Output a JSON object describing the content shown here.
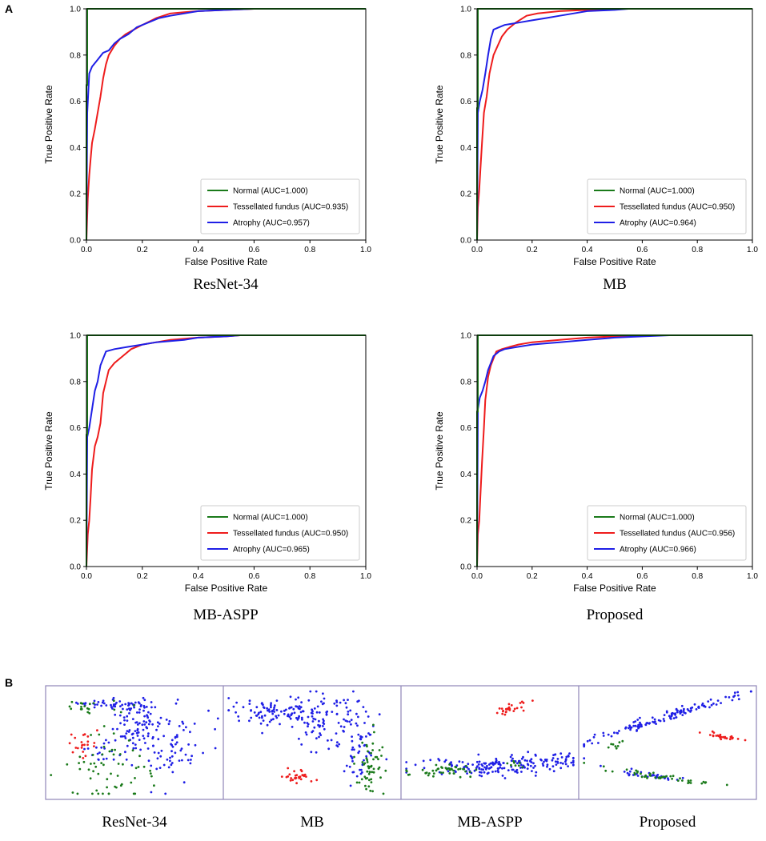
{
  "panel_labels": [
    "A",
    "B"
  ],
  "chart_data": [
    {
      "type": "line",
      "caption": "ResNet-34",
      "xlabel": "False Positive Rate",
      "ylabel": "True Positive Rate",
      "xlim": [
        0,
        1
      ],
      "ylim": [
        0,
        1
      ],
      "xticks": [
        "0.0",
        "0.2",
        "0.4",
        "0.6",
        "0.8",
        "1.0"
      ],
      "yticks": [
        "0.0",
        "0.2",
        "0.4",
        "0.6",
        "0.8",
        "1.0"
      ],
      "legend_position": "lower-right",
      "series": [
        {
          "name": "Normal (AUC=1.000)",
          "color": "#1a7a1a",
          "x": [
            0,
            0,
            0,
            0.003,
            0.003,
            1.0
          ],
          "y": [
            0,
            0.55,
            0.67,
            0.67,
            1.0,
            1.0
          ]
        },
        {
          "name": "Tessellated fundus (AUC=0.935)",
          "color": "#ee1c1c",
          "x": [
            0,
            0.005,
            0.01,
            0.015,
            0.02,
            0.03,
            0.04,
            0.05,
            0.06,
            0.07,
            0.08,
            0.1,
            0.12,
            0.14,
            0.17,
            0.2,
            0.25,
            0.3,
            0.35,
            0.4,
            0.5,
            0.6,
            1.0
          ],
          "y": [
            0,
            0.18,
            0.28,
            0.35,
            0.42,
            0.48,
            0.55,
            0.62,
            0.7,
            0.76,
            0.8,
            0.84,
            0.87,
            0.89,
            0.91,
            0.93,
            0.96,
            0.98,
            0.985,
            0.99,
            0.995,
            1.0,
            1.0
          ]
        },
        {
          "name": "Atrophy (AUC=0.957)",
          "color": "#1f1fe6",
          "x": [
            0,
            0.003,
            0.01,
            0.02,
            0.04,
            0.06,
            0.08,
            0.1,
            0.12,
            0.15,
            0.18,
            0.22,
            0.26,
            0.3,
            0.35,
            0.4,
            0.5,
            0.6,
            1.0
          ],
          "y": [
            0,
            0.55,
            0.72,
            0.75,
            0.78,
            0.81,
            0.82,
            0.85,
            0.87,
            0.89,
            0.92,
            0.94,
            0.96,
            0.97,
            0.98,
            0.99,
            0.995,
            1.0,
            1.0
          ]
        }
      ]
    },
    {
      "type": "line",
      "caption": "MB",
      "xlabel": "False Positive Rate",
      "ylabel": "True Positive Rate",
      "xlim": [
        0,
        1
      ],
      "ylim": [
        0,
        1
      ],
      "xticks": [
        "0.0",
        "0.2",
        "0.4",
        "0.6",
        "0.8",
        "1.0"
      ],
      "yticks": [
        "0.0",
        "0.2",
        "0.4",
        "0.6",
        "0.8",
        "1.0"
      ],
      "legend_position": "lower-right",
      "series": [
        {
          "name": "Normal (AUC=1.000)",
          "color": "#1a7a1a",
          "x": [
            0,
            0,
            0.003,
            0.003,
            1.0
          ],
          "y": [
            0,
            0.57,
            0.57,
            1.0,
            1.0
          ]
        },
        {
          "name": "Tessellated fundus (AUC=0.950)",
          "color": "#ee1c1c",
          "x": [
            0,
            0.003,
            0.008,
            0.012,
            0.018,
            0.025,
            0.035,
            0.045,
            0.06,
            0.075,
            0.09,
            0.11,
            0.14,
            0.18,
            0.22,
            0.3,
            0.4,
            0.5,
            0.6,
            1.0
          ],
          "y": [
            0,
            0.14,
            0.22,
            0.3,
            0.42,
            0.55,
            0.62,
            0.72,
            0.8,
            0.84,
            0.88,
            0.91,
            0.94,
            0.97,
            0.98,
            0.99,
            0.995,
            1.0,
            1.0,
            1.0
          ]
        },
        {
          "name": "Atrophy (AUC=0.964)",
          "color": "#1f1fe6",
          "x": [
            0,
            0.003,
            0.01,
            0.02,
            0.03,
            0.04,
            0.05,
            0.06,
            0.08,
            0.1,
            0.15,
            0.2,
            0.25,
            0.3,
            0.35,
            0.4,
            0.5,
            0.55,
            1.0
          ],
          "y": [
            0,
            0.55,
            0.6,
            0.65,
            0.72,
            0.8,
            0.87,
            0.91,
            0.92,
            0.93,
            0.94,
            0.95,
            0.96,
            0.97,
            0.98,
            0.99,
            0.995,
            1.0,
            1.0
          ]
        }
      ]
    },
    {
      "type": "line",
      "caption": "MB-ASPP",
      "xlabel": "False Positive Rate",
      "ylabel": "True Positive Rate",
      "xlim": [
        0,
        1
      ],
      "ylim": [
        0,
        1
      ],
      "xticks": [
        "0.0",
        "0.2",
        "0.4",
        "0.6",
        "0.8",
        "1.0"
      ],
      "yticks": [
        "0.0",
        "0.2",
        "0.4",
        "0.6",
        "0.8",
        "1.0"
      ],
      "legend_position": "lower-right",
      "series": [
        {
          "name": "Normal (AUC=1.000)",
          "color": "#1a7a1a",
          "x": [
            0,
            0,
            0.003,
            0.003,
            1.0
          ],
          "y": [
            0,
            0.57,
            0.57,
            1.0,
            1.0
          ]
        },
        {
          "name": "Tessellated fundus (AUC=0.950)",
          "color": "#ee1c1c",
          "x": [
            0,
            0.005,
            0.01,
            0.015,
            0.02,
            0.03,
            0.04,
            0.05,
            0.06,
            0.07,
            0.08,
            0.1,
            0.13,
            0.16,
            0.2,
            0.25,
            0.3,
            0.4,
            0.5,
            0.55,
            1.0
          ],
          "y": [
            0,
            0.14,
            0.2,
            0.3,
            0.42,
            0.52,
            0.56,
            0.62,
            0.75,
            0.8,
            0.85,
            0.88,
            0.91,
            0.94,
            0.96,
            0.97,
            0.98,
            0.99,
            0.995,
            1.0,
            1.0
          ]
        },
        {
          "name": "Atrophy (AUC=0.965)",
          "color": "#1f1fe6",
          "x": [
            0,
            0.003,
            0.01,
            0.02,
            0.03,
            0.04,
            0.05,
            0.07,
            0.1,
            0.15,
            0.2,
            0.25,
            0.3,
            0.35,
            0.4,
            0.5,
            0.55,
            1.0
          ],
          "y": [
            0,
            0.56,
            0.6,
            0.68,
            0.76,
            0.8,
            0.87,
            0.93,
            0.94,
            0.95,
            0.96,
            0.97,
            0.975,
            0.98,
            0.99,
            0.995,
            1.0,
            1.0
          ]
        }
      ]
    },
    {
      "type": "line",
      "caption": "Proposed",
      "xlabel": "False Positive Rate",
      "ylabel": "True Positive Rate",
      "xlim": [
        0,
        1
      ],
      "ylim": [
        0,
        1
      ],
      "xticks": [
        "0.0",
        "0.2",
        "0.4",
        "0.6",
        "0.8",
        "1.0"
      ],
      "yticks": [
        "0.0",
        "0.2",
        "0.4",
        "0.6",
        "0.8",
        "1.0"
      ],
      "legend_position": "lower-right",
      "series": [
        {
          "name": "Normal (AUC=1.000)",
          "color": "#1a7a1a",
          "x": [
            0,
            0,
            0.003,
            0.003,
            1.0
          ],
          "y": [
            0,
            0.67,
            0.67,
            1.0,
            1.0
          ]
        },
        {
          "name": "Tessellated fundus (AUC=0.956)",
          "color": "#ee1c1c",
          "x": [
            0,
            0.003,
            0.008,
            0.012,
            0.018,
            0.025,
            0.03,
            0.04,
            0.05,
            0.06,
            0.07,
            0.09,
            0.12,
            0.15,
            0.2,
            0.3,
            0.4,
            0.5,
            0.6,
            1.0
          ],
          "y": [
            0,
            0.14,
            0.2,
            0.3,
            0.45,
            0.6,
            0.72,
            0.82,
            0.87,
            0.9,
            0.93,
            0.94,
            0.95,
            0.96,
            0.97,
            0.98,
            0.99,
            0.995,
            1.0,
            1.0
          ]
        },
        {
          "name": "Atrophy (AUC=0.966)",
          "color": "#1f1fe6",
          "x": [
            0,
            0.003,
            0.01,
            0.02,
            0.03,
            0.04,
            0.05,
            0.06,
            0.08,
            0.1,
            0.15,
            0.2,
            0.25,
            0.3,
            0.4,
            0.5,
            0.6,
            0.7,
            1.0
          ],
          "y": [
            0,
            0.68,
            0.73,
            0.76,
            0.8,
            0.85,
            0.88,
            0.91,
            0.93,
            0.94,
            0.95,
            0.96,
            0.965,
            0.97,
            0.98,
            0.99,
            0.995,
            1.0,
            1.0
          ]
        }
      ]
    },
    {
      "type": "scatter",
      "caption": "ResNet-34",
      "series": [
        {
          "name": "Normal",
          "color": "#1a7a1a",
          "clusters": [
            {
              "cx": 0.22,
              "cy": 0.18,
              "sx": 0.1,
              "sy": 0.03,
              "rot": 0,
              "n": 18
            },
            {
              "cx": 0.38,
              "cy": 0.75,
              "sx": 0.13,
              "sy": 0.15,
              "rot": 0,
              "n": 60
            }
          ]
        },
        {
          "name": "Tessellated fundus",
          "color": "#ee1c1c",
          "clusters": [
            {
              "cx": 0.2,
              "cy": 0.52,
              "sx": 0.04,
              "sy": 0.05,
              "rot": 0,
              "n": 22
            }
          ]
        },
        {
          "name": "Atrophy",
          "color": "#1f1fe6",
          "clusters": [
            {
              "cx": 0.42,
              "cy": 0.16,
              "sx": 0.12,
              "sy": 0.02,
              "rot": 0,
              "n": 45
            },
            {
              "cx": 0.5,
              "cy": 0.35,
              "sx": 0.07,
              "sy": 0.12,
              "rot": 0,
              "n": 90
            },
            {
              "cx": 0.72,
              "cy": 0.55,
              "sx": 0.1,
              "sy": 0.18,
              "rot": 0.3,
              "n": 70
            },
            {
              "cx": 0.3,
              "cy": 0.6,
              "sx": 0.04,
              "sy": 0.06,
              "rot": 0,
              "n": 15
            }
          ]
        }
      ]
    },
    {
      "type": "scatter",
      "caption": "MB",
      "series": [
        {
          "name": "Normal",
          "color": "#1a7a1a",
          "clusters": [
            {
              "cx": 0.82,
              "cy": 0.68,
              "sx": 0.04,
              "sy": 0.15,
              "rot": 0,
              "n": 55
            }
          ]
        },
        {
          "name": "Tessellated fundus",
          "color": "#ee1c1c",
          "clusters": [
            {
              "cx": 0.42,
              "cy": 0.8,
              "sx": 0.05,
              "sy": 0.04,
              "rot": 0.5,
              "n": 28
            }
          ]
        },
        {
          "name": "Atrophy",
          "color": "#1f1fe6",
          "clusters": [
            {
              "cx": 0.28,
              "cy": 0.22,
              "sx": 0.14,
              "sy": 0.06,
              "rot": 0,
              "n": 90
            },
            {
              "cx": 0.58,
              "cy": 0.3,
              "sx": 0.1,
              "sy": 0.12,
              "rot": 0.4,
              "n": 90
            },
            {
              "cx": 0.76,
              "cy": 0.52,
              "sx": 0.05,
              "sy": 0.16,
              "rot": 0,
              "n": 60
            }
          ]
        }
      ]
    },
    {
      "type": "scatter",
      "caption": "MB-ASPP",
      "series": [
        {
          "name": "Normal",
          "color": "#1a7a1a",
          "clusters": [
            {
              "cx": 0.25,
              "cy": 0.74,
              "sx": 0.1,
              "sy": 0.03,
              "rot": 0,
              "n": 45
            },
            {
              "cx": 0.65,
              "cy": 0.68,
              "sx": 0.04,
              "sy": 0.02,
              "rot": 0,
              "n": 8
            }
          ]
        },
        {
          "name": "Tessellated fundus",
          "color": "#ee1c1c",
          "clusters": [
            {
              "cx": 0.62,
              "cy": 0.2,
              "sx": 0.06,
              "sy": 0.025,
              "rot": -0.35,
              "n": 28
            }
          ]
        },
        {
          "name": "Atrophy",
          "color": "#1f1fe6",
          "clusters": [
            {
              "cx": 0.47,
              "cy": 0.72,
              "sx": 0.18,
              "sy": 0.04,
              "rot": 0,
              "n": 120
            },
            {
              "cx": 0.77,
              "cy": 0.66,
              "sx": 0.12,
              "sy": 0.035,
              "rot": 0,
              "n": 70
            }
          ]
        }
      ]
    },
    {
      "type": "scatter",
      "caption": "Proposed",
      "series": [
        {
          "name": "Normal",
          "color": "#1a7a1a",
          "clusters": [
            {
              "cx": 0.45,
              "cy": 0.8,
              "sx": 0.15,
              "sy": 0.012,
              "rot": 0.22,
              "n": 45
            },
            {
              "cx": 0.22,
              "cy": 0.52,
              "sx": 0.03,
              "sy": 0.02,
              "rot": 0,
              "n": 8
            }
          ]
        },
        {
          "name": "Tessellated fundus",
          "color": "#ee1c1c",
          "clusters": [
            {
              "cx": 0.82,
              "cy": 0.45,
              "sx": 0.06,
              "sy": 0.01,
              "rot": 0.25,
              "n": 26
            }
          ]
        },
        {
          "name": "Atrophy",
          "color": "#1f1fe6",
          "clusters": [
            {
              "cx": 0.48,
              "cy": 0.28,
              "sx": 0.27,
              "sy": 0.018,
              "rot": -0.45,
              "n": 130
            },
            {
              "cx": 0.45,
              "cy": 0.8,
              "sx": 0.12,
              "sy": 0.012,
              "rot": 0.22,
              "n": 30
            }
          ]
        }
      ]
    }
  ]
}
